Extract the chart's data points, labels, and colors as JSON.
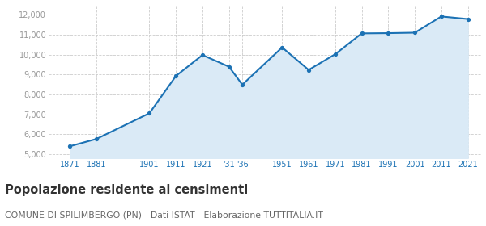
{
  "years": [
    1871,
    1881,
    1901,
    1911,
    1921,
    1931,
    1936,
    1951,
    1961,
    1971,
    1981,
    1991,
    2001,
    2011,
    2021
  ],
  "population": [
    5398,
    5765,
    7057,
    8930,
    9979,
    9390,
    8491,
    10360,
    9232,
    10020,
    11065,
    11077,
    11100,
    11915,
    11785
  ],
  "x_tick_positions": [
    1871,
    1881,
    1901,
    1911,
    1921,
    1931,
    1936,
    1951,
    1961,
    1971,
    1981,
    1991,
    2001,
    2011,
    2021
  ],
  "x_tick_labels": [
    "1871",
    "1881",
    "1901",
    "1911",
    "1921",
    "'31",
    "'36",
    "1951",
    "1961",
    "1971",
    "1981",
    "1991",
    "2001",
    "2011",
    "2021"
  ],
  "ylim": [
    4800,
    12400
  ],
  "xlim": [
    1863,
    2026
  ],
  "yticks": [
    5000,
    6000,
    7000,
    8000,
    9000,
    10000,
    11000,
    12000
  ],
  "ytick_labels": [
    "5,000",
    "6,000",
    "7,000",
    "8,000",
    "9,000",
    "10,000",
    "11,000",
    "12,000"
  ],
  "line_color": "#1c72b4",
  "fill_color": "#daeaf6",
  "marker_color": "#1c72b4",
  "grid_color": "#cccccc",
  "background_color": "#ffffff",
  "title": "Popolazione residente ai censimenti",
  "subtitle": "COMUNE DI SPILIMBERGO (PN) - Dati ISTAT - Elaborazione TUTTITALIA.IT",
  "title_fontsize": 10.5,
  "subtitle_fontsize": 7.8,
  "title_color": "#333333",
  "subtitle_color": "#666666",
  "ytick_color": "#999999",
  "xtick_color": "#1c72b4"
}
